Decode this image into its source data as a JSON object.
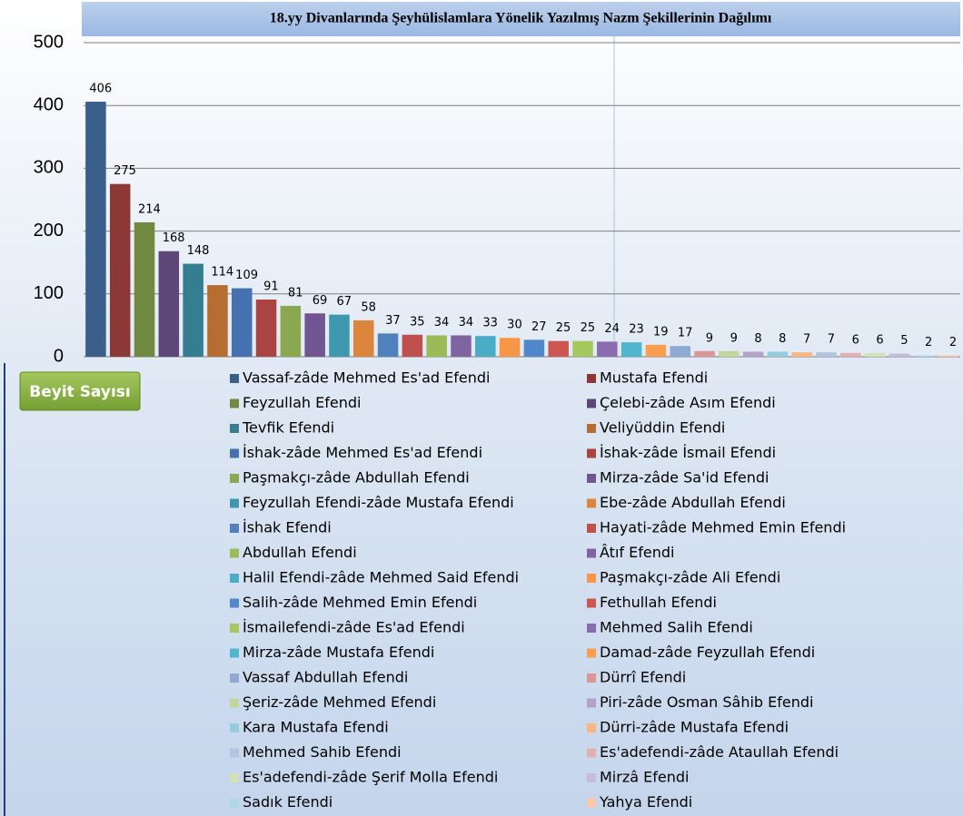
{
  "chart_data": {
    "type": "bar",
    "title": "18.yy Divanlarında Şeyhülislamlara Yönelik Yazılmış Nazm Şekillerinin Dağılımı",
    "y_label": "Beyit Sayısı",
    "ylim": [
      0,
      500
    ],
    "yticks": [
      0,
      100,
      200,
      300,
      400,
      500
    ],
    "grid": true,
    "series": [
      {
        "name": "Vassaf-zâde Mehmed Es'ad Efendi",
        "color": "#3a5f8b",
        "values": [
          406
        ]
      },
      {
        "name": "Mustafa Efendi",
        "color": "#8c3836",
        "values": [
          275
        ]
      },
      {
        "name": "Feyzullah Efendi",
        "color": "#71893f",
        "values": [
          214
        ]
      },
      {
        "name": "Çelebi-zâde Asım Efendi",
        "color": "#5d4778",
        "values": [
          168
        ]
      },
      {
        "name": "Tevfik Efendi",
        "color": "#357d91",
        "values": [
          148
        ]
      },
      {
        "name": "Veliyüddin Efendi",
        "color": "#b66d31",
        "values": [
          114
        ]
      },
      {
        "name": "İshak-zâde Mehmed Es'ad Efendi",
        "color": "#4671b0",
        "values": [
          109
        ]
      },
      {
        "name": "İshak-zâde İsmail Efendi",
        "color": "#a94442",
        "values": [
          91
        ]
      },
      {
        "name": "Paşmakçı-zâde Abdullah Efendi",
        "color": "#89a84f",
        "values": [
          81
        ]
      },
      {
        "name": "Mirza-zâde Sa'id Efendi",
        "color": "#715693",
        "values": [
          69
        ]
      },
      {
        "name": "Feyzullah Efendi-zâde Mustafa Efendi",
        "color": "#3f98b0",
        "values": [
          67
        ]
      },
      {
        "name": "Ebe-zâde Abdullah Efendi",
        "color": "#dc853c",
        "values": [
          58
        ]
      },
      {
        "name": "İshak Efendi",
        "color": "#4f81bd",
        "values": [
          37
        ]
      },
      {
        "name": "Hayati-zâde Mehmed Emin Efendi",
        "color": "#c0504d",
        "values": [
          35
        ]
      },
      {
        "name": "Abdullah Efendi",
        "color": "#9bbb59",
        "values": [
          34
        ]
      },
      {
        "name": "Âtıf Efendi",
        "color": "#8064a2",
        "values": [
          34
        ]
      },
      {
        "name": "Halil Efendi-zâde Mehmed Said Efendi",
        "color": "#4bacc6",
        "values": [
          33
        ]
      },
      {
        "name": "Paşmakçı-zâde Ali Efendi",
        "color": "#f79646",
        "values": [
          30
        ]
      },
      {
        "name": "Salih-zâde Mehmed Emin Efendi",
        "color": "#4f89cc",
        "values": [
          27
        ]
      },
      {
        "name": "Fethullah Efendi",
        "color": "#cf5552",
        "values": [
          25
        ]
      },
      {
        "name": "İsmailefendi-zâde Es'ad Efendi",
        "color": "#a6c65e",
        "values": [
          25
        ]
      },
      {
        "name": "Mehmed Salih Efendi",
        "color": "#8a6cb0",
        "values": [
          24
        ]
      },
      {
        "name": "Mirza-zâde Mustafa Efendi",
        "color": "#50b6d0",
        "values": [
          23
        ]
      },
      {
        "name": "Damad-zâde Feyzullah Efendi",
        "color": "#f99e4f",
        "values": [
          19
        ]
      },
      {
        "name": "Vassaf Abdullah Efendi",
        "color": "#8fa9d2",
        "values": [
          17
        ]
      },
      {
        "name": "Dürrî Efendi",
        "color": "#d99694",
        "values": [
          9
        ]
      },
      {
        "name": "Şeriz-zâde Mehmed Efendi",
        "color": "#c3d69b",
        "values": [
          9
        ]
      },
      {
        "name": "Piri-zâde Osman Sâhib Efendi",
        "color": "#b3a2c7",
        "values": [
          8
        ]
      },
      {
        "name": "Kara Mustafa Efendi",
        "color": "#93cddd",
        "values": [
          8
        ]
      },
      {
        "name": "Dürri-zâde Mustafa Efendi",
        "color": "#fab580",
        "values": [
          7
        ]
      },
      {
        "name": "Mehmed Sahib Efendi",
        "color": "#b3c3e0",
        "values": [
          7
        ]
      },
      {
        "name": "Es'adefendi-zâde Ataullah Efendi",
        "color": "#e3b0af",
        "values": [
          6
        ]
      },
      {
        "name": "Es'adefendi-zâde Şerif Molla Efendi",
        "color": "#d3e2b6",
        "values": [
          6
        ]
      },
      {
        "name": "Mirzâ Efendi",
        "color": "#c7bcd8",
        "values": [
          5
        ]
      },
      {
        "name": "Sadık Efendi",
        "color": "#abd8e4",
        "values": [
          2
        ]
      },
      {
        "name": "Yahya Efendi",
        "color": "#fcc8ab",
        "values": [
          2
        ]
      }
    ]
  }
}
